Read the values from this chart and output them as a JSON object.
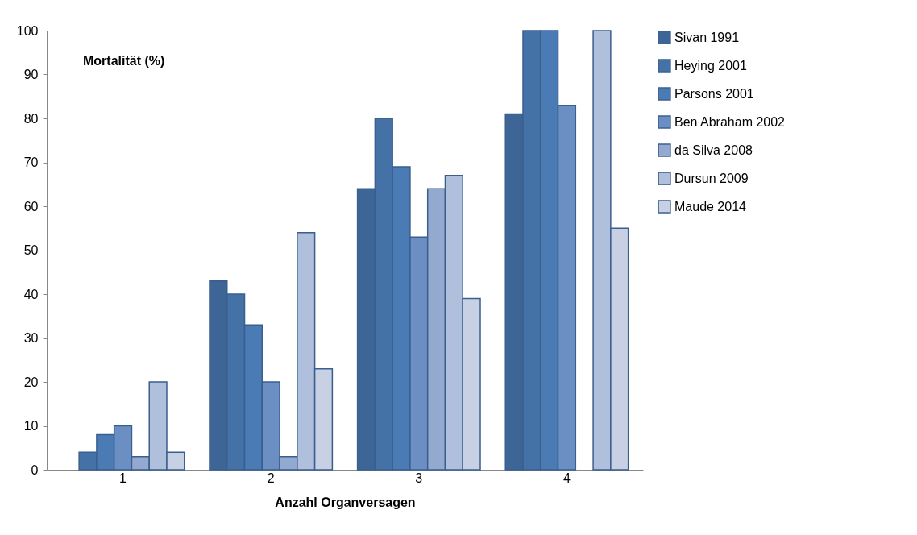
{
  "chart_data": {
    "type": "bar",
    "ylabel": "Mortalität (%)",
    "xlabel": "Anzahl Organversagen",
    "categories": [
      "1",
      "2",
      "3",
      "4"
    ],
    "series": [
      {
        "name": "Sivan 1991",
        "color": "#3d6596",
        "values": [
          null,
          43,
          64,
          81
        ]
      },
      {
        "name": "Heying 2001",
        "color": "#4471a6",
        "values": [
          4,
          40,
          80,
          100
        ]
      },
      {
        "name": "Parsons 2001",
        "color": "#4a7bb5",
        "values": [
          8,
          33,
          69,
          100
        ]
      },
      {
        "name": "Ben Abraham 2002",
        "color": "#6b8fc3",
        "values": [
          10,
          20,
          53,
          83
        ]
      },
      {
        "name": "da Silva 2008",
        "color": "#94a9d0",
        "values": [
          3,
          3,
          64,
          null
        ]
      },
      {
        "name": "Dursun 2009",
        "color": "#b0bfdb",
        "values": [
          20,
          54,
          67,
          100
        ]
      },
      {
        "name": "Maude 2014",
        "color": "#c8d1e3",
        "values": [
          4,
          23,
          39,
          55
        ]
      }
    ],
    "ylim": [
      0,
      100
    ],
    "yticks": [
      0,
      10,
      20,
      30,
      40,
      50,
      60,
      70,
      80,
      90,
      100
    ],
    "grid": false,
    "legend": "right"
  }
}
